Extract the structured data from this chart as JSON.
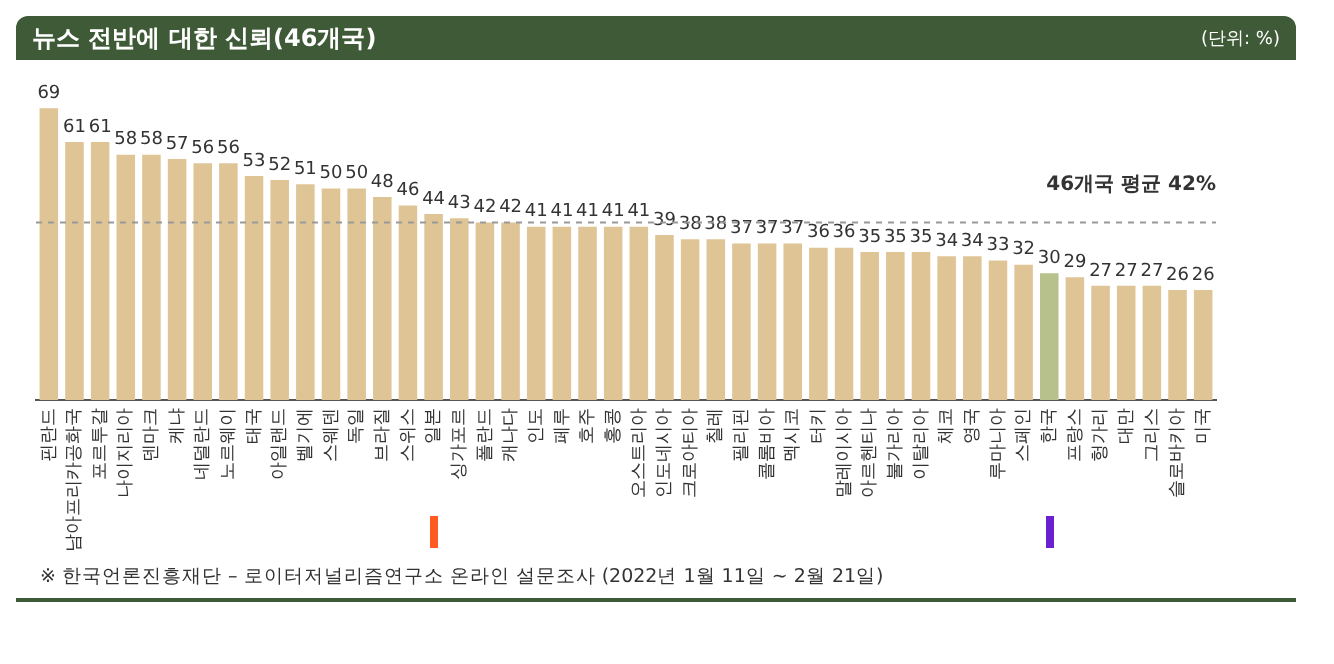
{
  "chart_data": {
    "type": "bar",
    "title": "뉴스 전반에 대한 신뢰(46개국)",
    "subtitle": "(단위: %)",
    "categories": [
      "핀란드",
      "남아프리카공화국",
      "포르투갈",
      "나이지리아",
      "덴마크",
      "케냐",
      "네덜란드",
      "노르웨이",
      "태국",
      "아일랜드",
      "벨기에",
      "스웨덴",
      "독일",
      "브라질",
      "스위스",
      "일본",
      "싱가포르",
      "폴란드",
      "캐나다",
      "인도",
      "페루",
      "호주",
      "홍콩",
      "오스트리아",
      "인도네시아",
      "크로아티아",
      "칠레",
      "필리핀",
      "콜롬비아",
      "멕시코",
      "터키",
      "말레이시아",
      "아르헨티나",
      "불가리아",
      "이탈리아",
      "체코",
      "영국",
      "루마니아",
      "스페인",
      "한국",
      "프랑스",
      "헝가리",
      "대만",
      "그리스",
      "슬로바키아",
      "미국"
    ],
    "values": [
      69,
      61,
      61,
      58,
      58,
      57,
      56,
      56,
      53,
      52,
      51,
      50,
      50,
      48,
      46,
      44,
      43,
      42,
      42,
      41,
      41,
      41,
      41,
      41,
      39,
      38,
      38,
      37,
      37,
      37,
      36,
      36,
      35,
      35,
      35,
      34,
      34,
      33,
      32,
      30,
      29,
      27,
      27,
      27,
      26,
      26
    ],
    "colors": [
      "#dfc496",
      "#dfc496",
      "#dfc496",
      "#dfc496",
      "#dfc496",
      "#dfc496",
      "#dfc496",
      "#dfc496",
      "#dfc496",
      "#dfc496",
      "#dfc496",
      "#dfc496",
      "#dfc496",
      "#dfc496",
      "#dfc496",
      "#dfc496",
      "#dfc496",
      "#dfc496",
      "#dfc496",
      "#dfc496",
      "#dfc496",
      "#dfc496",
      "#dfc496",
      "#dfc496",
      "#dfc496",
      "#dfc496",
      "#dfc496",
      "#dfc496",
      "#dfc496",
      "#dfc496",
      "#dfc496",
      "#dfc496",
      "#dfc496",
      "#dfc496",
      "#dfc496",
      "#dfc496",
      "#dfc496",
      "#dfc496",
      "#dfc496",
      "#b6c18c",
      "#dfc496",
      "#dfc496",
      "#dfc496",
      "#dfc496",
      "#dfc496",
      "#dfc496"
    ],
    "data_labels": true,
    "ref_lines": [
      {
        "axis": "y",
        "value": 42,
        "label": "46개국 평균 42%",
        "color": "#999999",
        "line_style": "dashed"
      }
    ],
    "annotations": [
      "※ 한국언론진흥재단 – 로이터저널리즘연구소 온라인 설문조사 (2022년 1월 11일 ~ 2월 21일)"
    ],
    "legend": false,
    "grid": false,
    "tick_labels": "x"
  }
}
